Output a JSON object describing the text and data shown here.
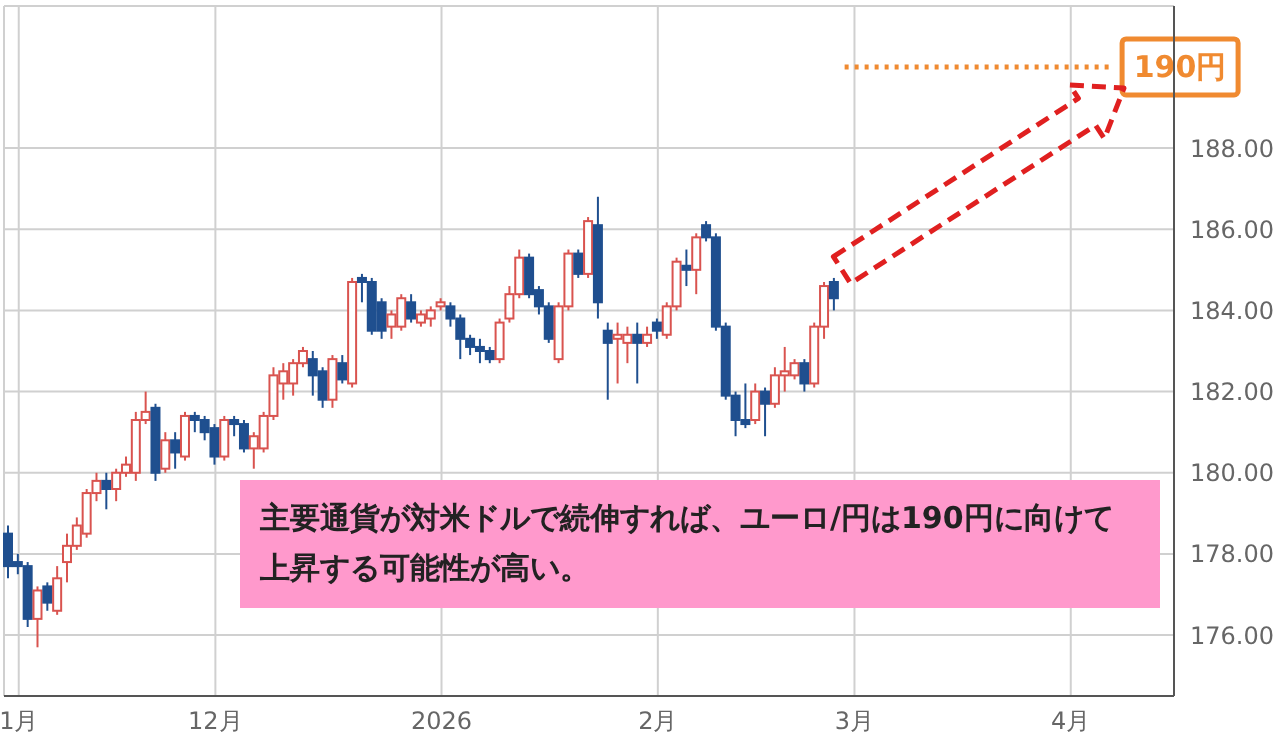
{
  "chart_data": {
    "type": "candlestick",
    "categories": [
      null,
      "1月",
      null,
      null,
      null,
      null,
      null,
      null,
      null,
      null,
      null,
      null,
      null,
      null,
      null,
      null,
      null,
      null,
      null,
      null,
      null,
      "12月",
      null,
      null,
      null,
      null,
      null,
      null,
      null,
      null,
      null,
      null,
      null,
      null,
      null,
      null,
      null,
      null,
      null,
      null,
      null,
      null,
      null,
      null,
      "2026",
      null,
      null,
      null,
      null,
      null,
      null,
      null,
      null,
      null,
      null,
      null,
      null,
      null,
      null,
      null,
      null,
      null,
      null,
      null,
      null,
      null,
      "2月",
      null,
      null,
      null,
      null,
      null,
      null,
      null,
      null,
      null,
      null,
      null,
      null,
      null,
      null,
      null,
      null,
      null,
      null,
      null,
      "3月",
      null,
      null,
      null,
      null,
      null,
      null,
      null,
      null,
      null,
      null,
      null,
      null,
      null,
      null,
      null,
      null,
      null,
      null,
      null,
      null,
      null,
      "4月",
      null,
      null,
      null,
      null,
      null,
      null,
      null,
      null,
      null,
      null
    ],
    "ohlc": [
      [
        178.5,
        178.7,
        177.4,
        177.7
      ],
      [
        177.8,
        178.0,
        177.5,
        177.7
      ],
      [
        177.7,
        177.8,
        176.2,
        176.4
      ],
      [
        176.4,
        177.2,
        175.7,
        177.1
      ],
      [
        177.2,
        177.3,
        176.6,
        176.8
      ],
      [
        176.6,
        177.7,
        176.5,
        177.4
      ],
      [
        177.8,
        178.5,
        177.3,
        178.2
      ],
      [
        178.2,
        178.9,
        178.1,
        178.7
      ],
      [
        178.5,
        179.6,
        178.4,
        179.5
      ],
      [
        179.5,
        180.0,
        179.3,
        179.8
      ],
      [
        179.8,
        180.0,
        179.1,
        179.6
      ],
      [
        179.6,
        180.1,
        179.3,
        180.0
      ],
      [
        180.0,
        180.4,
        179.9,
        180.2
      ],
      [
        180.0,
        181.5,
        179.8,
        181.3
      ],
      [
        181.3,
        182.0,
        181.2,
        181.5
      ],
      [
        181.6,
        181.7,
        179.8,
        180.0
      ],
      [
        180.1,
        181.0,
        180.0,
        180.8
      ],
      [
        180.8,
        181.0,
        180.1,
        180.5
      ],
      [
        180.4,
        181.5,
        180.3,
        181.4
      ],
      [
        181.4,
        181.5,
        181.0,
        181.3
      ],
      [
        181.3,
        181.4,
        180.8,
        181.0
      ],
      [
        181.1,
        181.2,
        180.2,
        180.4
      ],
      [
        180.4,
        181.4,
        180.3,
        181.3
      ],
      [
        181.3,
        181.4,
        180.9,
        181.2
      ],
      [
        181.2,
        181.3,
        180.5,
        180.6
      ],
      [
        180.6,
        181.0,
        180.1,
        180.9
      ],
      [
        180.6,
        181.5,
        180.5,
        181.4
      ],
      [
        181.4,
        182.6,
        181.3,
        182.4
      ],
      [
        182.2,
        182.7,
        181.8,
        182.5
      ],
      [
        182.2,
        182.8,
        181.9,
        182.7
      ],
      [
        182.7,
        183.1,
        182.6,
        183.0
      ],
      [
        182.8,
        183.0,
        181.9,
        182.4
      ],
      [
        182.5,
        182.6,
        181.6,
        181.8
      ],
      [
        181.8,
        182.9,
        181.6,
        182.8
      ],
      [
        182.7,
        182.9,
        182.2,
        182.3
      ],
      [
        182.2,
        184.8,
        182.1,
        184.7
      ],
      [
        184.8,
        184.9,
        184.2,
        184.7
      ],
      [
        184.7,
        184.8,
        183.4,
        183.5
      ],
      [
        184.2,
        184.3,
        183.3,
        183.5
      ],
      [
        183.6,
        184.0,
        183.3,
        183.9
      ],
      [
        183.6,
        184.4,
        183.5,
        184.3
      ],
      [
        184.2,
        184.4,
        183.7,
        183.8
      ],
      [
        183.7,
        184.0,
        183.6,
        183.9
      ],
      [
        183.8,
        184.1,
        183.6,
        184.0
      ],
      [
        184.1,
        184.3,
        184.0,
        184.2
      ],
      [
        184.1,
        184.2,
        183.6,
        183.8
      ],
      [
        183.8,
        183.9,
        182.8,
        183.3
      ],
      [
        183.3,
        183.4,
        182.9,
        183.1
      ],
      [
        183.1,
        183.3,
        182.7,
        183.0
      ],
      [
        183.0,
        183.1,
        182.7,
        182.8
      ],
      [
        182.8,
        183.8,
        182.7,
        183.7
      ],
      [
        183.8,
        184.6,
        183.7,
        184.4
      ],
      [
        184.4,
        185.5,
        184.3,
        185.3
      ],
      [
        185.3,
        185.4,
        184.3,
        184.4
      ],
      [
        184.5,
        184.6,
        183.9,
        184.1
      ],
      [
        184.1,
        184.2,
        183.2,
        183.3
      ],
      [
        182.8,
        184.2,
        182.7,
        184.1
      ],
      [
        184.1,
        185.5,
        184.0,
        185.4
      ],
      [
        185.4,
        185.5,
        184.8,
        184.9
      ],
      [
        184.9,
        186.3,
        184.8,
        186.2
      ],
      [
        186.1,
        186.8,
        183.8,
        184.2
      ],
      [
        183.5,
        183.7,
        181.8,
        183.2
      ],
      [
        183.3,
        183.7,
        182.2,
        183.4
      ],
      [
        183.2,
        183.6,
        182.7,
        183.4
      ],
      [
        183.4,
        183.7,
        182.2,
        183.2
      ],
      [
        183.2,
        183.6,
        183.1,
        183.4
      ],
      [
        183.7,
        183.8,
        183.3,
        183.5
      ],
      [
        183.4,
        184.2,
        183.3,
        184.1
      ],
      [
        184.1,
        185.3,
        184.0,
        185.2
      ],
      [
        185.1,
        185.5,
        184.6,
        185.0
      ],
      [
        185.0,
        185.9,
        184.4,
        185.8
      ],
      [
        186.1,
        186.2,
        185.7,
        185.8
      ],
      [
        185.8,
        185.9,
        183.5,
        183.6
      ],
      [
        183.6,
        183.7,
        181.8,
        181.9
      ],
      [
        181.9,
        182.0,
        180.9,
        181.3
      ],
      [
        181.3,
        182.2,
        181.1,
        181.2
      ],
      [
        181.3,
        182.2,
        181.2,
        182.0
      ],
      [
        182.0,
        182.1,
        180.9,
        181.7
      ],
      [
        181.7,
        182.6,
        181.6,
        182.4
      ],
      [
        182.4,
        183.1,
        182.0,
        182.5
      ],
      [
        182.4,
        182.8,
        182.3,
        182.7
      ],
      [
        182.7,
        182.8,
        182.0,
        182.2
      ],
      [
        182.2,
        183.7,
        182.1,
        183.6
      ],
      [
        183.6,
        184.7,
        183.3,
        184.6
      ],
      [
        184.7,
        184.8,
        184.0,
        184.3
      ],
      null,
      null,
      null,
      null,
      null,
      null,
      null,
      null,
      null,
      null,
      null,
      null,
      null,
      null,
      null,
      null,
      null,
      null,
      null,
      null,
      null,
      null,
      null,
      null,
      null,
      null,
      null,
      null,
      null,
      null,
      null,
      null,
      null,
      null
    ],
    "colors": [
      "#1f4f8f",
      "#1f4f8f",
      "#1f4f8f",
      "#d9534f",
      "#1f4f8f",
      "#d9534f",
      "#d9534f",
      "#d9534f",
      "#d9534f",
      "#d9534f",
      "#1f4f8f",
      "#d9534f",
      "#d9534f",
      "#d9534f",
      "#d9534f",
      "#1f4f8f",
      "#d9534f",
      "#1f4f8f",
      "#d9534f",
      "#1f4f8f",
      "#1f4f8f",
      "#1f4f8f",
      "#d9534f",
      "#1f4f8f",
      "#1f4f8f",
      "#d9534f",
      "#d9534f",
      "#d9534f",
      "#d9534f",
      "#d9534f",
      "#d9534f",
      "#1f4f8f",
      "#1f4f8f",
      "#d9534f",
      "#1f4f8f",
      "#d9534f",
      "#1f4f8f",
      "#1f4f8f",
      "#1f4f8f",
      "#d9534f",
      "#d9534f",
      "#1f4f8f",
      "#d9534f",
      "#d9534f",
      "#d9534f",
      "#1f4f8f",
      "#1f4f8f",
      "#1f4f8f",
      "#1f4f8f",
      "#1f4f8f",
      "#d9534f",
      "#d9534f",
      "#d9534f",
      "#1f4f8f",
      "#1f4f8f",
      "#1f4f8f",
      "#d9534f",
      "#d9534f",
      "#1f4f8f",
      "#d9534f",
      "#1f4f8f",
      "#1f4f8f",
      "#d9534f",
      "#d9534f",
      "#1f4f8f",
      "#d9534f",
      "#1f4f8f",
      "#d9534f",
      "#d9534f",
      "#1f4f8f",
      "#d9534f",
      "#1f4f8f",
      "#1f4f8f",
      "#1f4f8f",
      "#1f4f8f",
      "#1f4f8f",
      "#d9534f",
      "#1f4f8f",
      "#d9534f",
      "#d9534f",
      "#d9534f",
      "#1f4f8f",
      "#d9534f",
      "#d9534f",
      "#1f4f8f",
      null,
      null,
      null,
      null,
      null,
      null,
      null,
      null,
      null,
      null,
      null,
      null,
      null,
      null,
      null,
      null,
      null,
      null,
      null,
      null,
      null,
      null,
      null,
      null,
      null,
      null,
      null,
      null,
      null,
      null,
      null,
      null,
      null,
      null
    ],
    "ylim": [
      174.5,
      191.5
    ],
    "yticks": [
      {
        "value": 176,
        "label": "176.00"
      },
      {
        "value": 178,
        "label": "178.00"
      },
      {
        "value": 180,
        "label": "180.00"
      },
      {
        "value": 182,
        "label": "182.00"
      },
      {
        "value": 184,
        "label": "184.00"
      },
      {
        "value": 186,
        "label": "186.00"
      },
      {
        "value": 188,
        "label": "188.00"
      }
    ],
    "grid": true,
    "ref_lines": [
      {
        "axis": "y",
        "value": 190,
        "label": "190円",
        "color": "#f08a30",
        "line_style": "dotted"
      }
    ],
    "annotations": [
      "主要通貨が対米ドルで続伸すれば、ユーロ/円は190円に向けて上昇する可能性が高い。"
    ]
  }
}
